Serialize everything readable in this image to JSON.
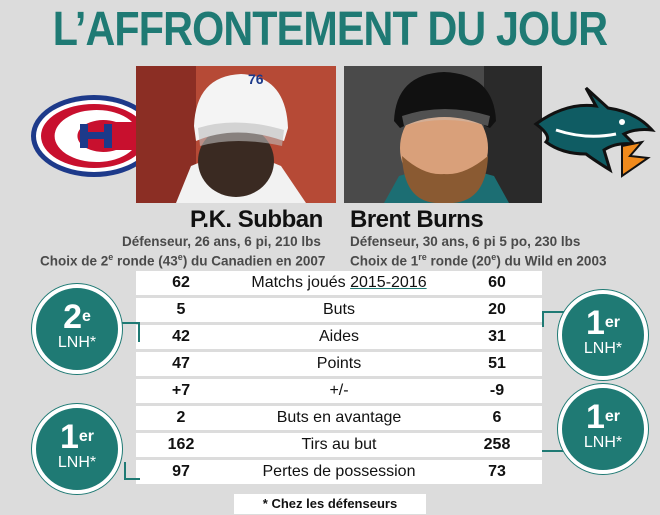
{
  "header": {
    "title": "L’AFFRONTEMENT DU JOUR"
  },
  "players": {
    "left": {
      "name": "P.K. Subban",
      "line1": "Défenseur, 26 ans, 6 pi, 210 lbs",
      "choice_a": "Choix de 2",
      "choice_sup": "e",
      "choice_b": " ronde (43",
      "choice_sup2": "e",
      "choice_c": ") du Canadien en 2007",
      "jersey": "76"
    },
    "right": {
      "name": "Brent Burns",
      "line1": "Défenseur, 30 ans, 6 pi 5 po, 230 lbs",
      "choice_a": "Choix de 1",
      "choice_sup": "re",
      "choice_b": " ronde (20",
      "choice_sup2": "e",
      "choice_c": ") du Wild en 2003"
    }
  },
  "stats": {
    "rows": [
      {
        "left": "62",
        "label_pre": "Matchs joués ",
        "label_u": "2015-2016",
        "right": "60"
      },
      {
        "left": "5",
        "label": "Buts",
        "right": "20"
      },
      {
        "left": "42",
        "label": "Aides",
        "right": "31"
      },
      {
        "left": "47",
        "label": "Points",
        "right": "51"
      },
      {
        "left": "+7",
        "label": "+/-",
        "right": "-9"
      },
      {
        "left": "2",
        "label": "Buts en avantage",
        "right": "6"
      },
      {
        "left": "162",
        "label": "Tirs au but",
        "right": "258"
      },
      {
        "left": "97",
        "label": "Pertes de possession",
        "right": "73"
      }
    ]
  },
  "badges": {
    "b1": {
      "rank": "2",
      "sup": "e",
      "league": "LNH*"
    },
    "b2": {
      "rank": "1",
      "sup": "er",
      "league": "LNH*"
    },
    "b3": {
      "rank": "1",
      "sup": "er",
      "league": "LNH*"
    },
    "b4": {
      "rank": "1",
      "sup": "er",
      "league": "LNH*"
    }
  },
  "footnote": "* Chez les défenseurs",
  "colors": {
    "accent": "#1f7a74",
    "habs_red": "#c8102e",
    "habs_blue": "#1d3a8a"
  }
}
